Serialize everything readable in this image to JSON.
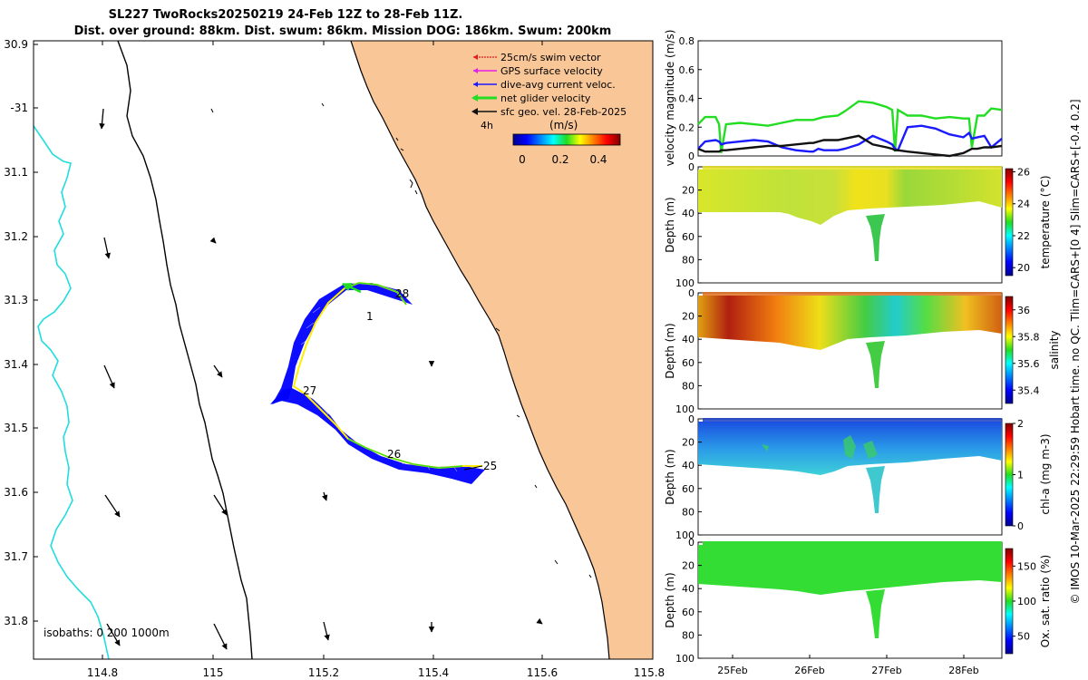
{
  "title": {
    "line1": "SL227 TwoRocks20250219 24-Feb 12Z to 28-Feb 11Z.",
    "line2": "Dist. over ground: 88km. Dist. swum: 86km. Mission DOG: 186km. Swum: 200km"
  },
  "copyright": "© IMOS 10-Mar-2025 22:29:59 Hobart time. no QC. Tlim=CARS+[0 4] Slim=CARS+[-0.4 0.2]",
  "map": {
    "lon_ticks": [
      "114.8",
      "115",
      "115.2",
      "115.4",
      "115.6",
      "115.8"
    ],
    "lat_ticks": [
      "30.9",
      "-31",
      "31.1",
      "31.2",
      "31.3",
      "31.4",
      "31.5",
      "31.6",
      "31.7",
      "31.8"
    ],
    "isobaths_label": "isobaths: 0   200  1000m",
    "legend": {
      "items": [
        {
          "label": "25cm/s swim vector",
          "color": "#e31a1c"
        },
        {
          "label": "GPS surface velocity",
          "color": "#e81ee8"
        },
        {
          "label": "dive-avg current veloc.",
          "color": "#1a1aff"
        },
        {
          "label": "net glider velocity",
          "color": "#22dd22"
        },
        {
          "label": "sfc geo. vel. 28-Feb-2025",
          "color": "#111111"
        }
      ],
      "arrow_scale_label": "4h",
      "colorbar_title": "(m/s)",
      "colorbar_ticks": [
        "0",
        "0.2",
        "0.4"
      ]
    },
    "day_labels": [
      "28",
      "1",
      "27",
      "26",
      "25"
    ],
    "colors": {
      "land": "#f9c698",
      "track_blue": "#0000ff",
      "track_yellow": "#ffee00",
      "isobath_cyan": "#22dddd"
    }
  },
  "chart_data": [
    {
      "type": "line",
      "title": "",
      "ylabel": "velocity magnitude (m/s)",
      "ylim": [
        0,
        0.8
      ],
      "yticks": [
        "0",
        "0.2",
        "0.4",
        "0.6",
        "0.8"
      ],
      "x": [
        0.0,
        0.1,
        0.25,
        0.3,
        0.33,
        0.4,
        0.6,
        0.8,
        1.0,
        1.2,
        1.4,
        1.6,
        1.65,
        1.72,
        1.8,
        2.0,
        2.1,
        2.3,
        2.5,
        2.7,
        2.78,
        2.82,
        2.86,
        3.0,
        3.2,
        3.4,
        3.6,
        3.8,
        3.88,
        3.92,
        4.0,
        4.1,
        4.2,
        4.35
      ],
      "series": [
        {
          "name": "net glider velocity",
          "color": "#22dd22",
          "values": [
            0.22,
            0.27,
            0.27,
            0.22,
            0.02,
            0.22,
            0.23,
            0.22,
            0.21,
            0.23,
            0.25,
            0.25,
            0.25,
            0.26,
            0.27,
            0.28,
            0.31,
            0.38,
            0.37,
            0.34,
            0.32,
            0.03,
            0.32,
            0.28,
            0.28,
            0.26,
            0.27,
            0.26,
            0.26,
            0.06,
            0.28,
            0.28,
            0.33,
            0.32
          ]
        },
        {
          "name": "dive-avg current veloc.",
          "color": "#1a1aff",
          "values": [
            0.05,
            0.1,
            0.11,
            0.1,
            0.08,
            0.09,
            0.1,
            0.11,
            0.1,
            0.06,
            0.04,
            0.03,
            0.03,
            0.05,
            0.04,
            0.04,
            0.05,
            0.08,
            0.14,
            0.1,
            0.08,
            0.05,
            0.04,
            0.2,
            0.21,
            0.19,
            0.15,
            0.13,
            0.16,
            0.12,
            0.13,
            0.14,
            0.06,
            0.12
          ]
        },
        {
          "name": "sfc geo. vel.",
          "color": "#111111",
          "values": [
            0.05,
            0.03,
            0.03,
            0.03,
            0.04,
            0.04,
            0.05,
            0.06,
            0.07,
            0.07,
            0.08,
            0.09,
            0.09,
            0.1,
            0.11,
            0.11,
            0.12,
            0.14,
            0.08,
            0.06,
            0.05,
            0.04,
            0.04,
            0.03,
            0.02,
            0.01,
            0.0,
            0.02,
            0.04,
            0.05,
            0.05,
            0.06,
            0.06,
            0.07
          ]
        }
      ]
    },
    {
      "type": "heatmap",
      "ylabel": "Depth (m)",
      "yticks": [
        "0",
        "20",
        "40",
        "60",
        "80",
        "100"
      ],
      "colorbar_label": "temperature (°C)",
      "colorbar_ticks": [
        "20",
        "22",
        "24",
        "26"
      ],
      "clim": [
        19.5,
        26.2
      ]
    },
    {
      "type": "heatmap",
      "ylabel": "Depth (m)",
      "yticks": [
        "0",
        "20",
        "40",
        "60",
        "80",
        "100"
      ],
      "colorbar_label": "salinity",
      "colorbar_ticks": [
        "35.4",
        "35.6",
        "35.8",
        "36"
      ],
      "clim": [
        35.3,
        36.1
      ]
    },
    {
      "type": "heatmap",
      "ylabel": "Depth (m)",
      "yticks": [
        "0",
        "20",
        "40",
        "60",
        "80",
        "100"
      ],
      "colorbar_label": "chl-a (mg m-3)",
      "colorbar_ticks": [
        "0",
        "1",
        "2"
      ],
      "clim": [
        0,
        2
      ]
    },
    {
      "type": "heatmap",
      "ylabel": "Depth (m)",
      "yticks": [
        "0",
        "20",
        "40",
        "60",
        "80",
        "100"
      ],
      "colorbar_label": "Ox. sat. ratio (%)",
      "colorbar_ticks": [
        "50",
        "100",
        "150"
      ],
      "clim": [
        25,
        175
      ]
    }
  ],
  "time_axis": {
    "ticks": [
      "25Feb",
      "26Feb",
      "27Feb",
      "28Feb"
    ]
  }
}
